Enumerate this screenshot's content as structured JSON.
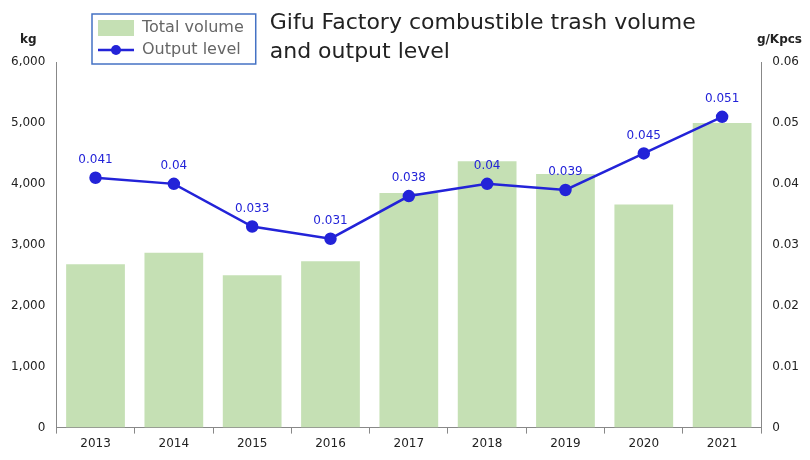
{
  "chart_data": {
    "type": "bar",
    "title": [
      "Gifu Factory combustible trash volume",
      "and output level"
    ],
    "y_label": "kg",
    "y2_label": "g/Kpcs",
    "categories": [
      "2013",
      "2014",
      "2015",
      "2016",
      "2017",
      "2018",
      "2019",
      "2020",
      "2021"
    ],
    "series": [
      {
        "name": "Total volume",
        "type": "bar",
        "color": "#c5e0b4",
        "values": [
          2680,
          2870,
          2500,
          2730,
          3850,
          4370,
          4160,
          3660,
          5000
        ]
      },
      {
        "name": "Output level",
        "type": "line",
        "color": "#2323d8",
        "axis": "y2",
        "marker": "circle",
        "line_style": "solid",
        "data_labels": true,
        "values": [
          0.041,
          0.04,
          0.033,
          0.031,
          0.038,
          0.04,
          0.039,
          0.045,
          0.051
        ]
      }
    ],
    "ylim": [
      0,
      6000
    ],
    "yticks": [
      0,
      {
        "value": 1000,
        "label": "1,000"
      },
      {
        "value": 2000,
        "label": "2,000"
      },
      {
        "value": 3000,
        "label": "3,000"
      },
      {
        "value": 4000,
        "label": "4,000"
      },
      {
        "value": 5000,
        "label": "5,000"
      },
      {
        "value": 6000,
        "label": "6,000"
      }
    ],
    "y2lim": [
      0,
      0.06
    ],
    "y2ticks": [
      0,
      0.01,
      0.02,
      0.03,
      0.04,
      0.05,
      0.06
    ],
    "grid": false,
    "legend": "upper left"
  }
}
